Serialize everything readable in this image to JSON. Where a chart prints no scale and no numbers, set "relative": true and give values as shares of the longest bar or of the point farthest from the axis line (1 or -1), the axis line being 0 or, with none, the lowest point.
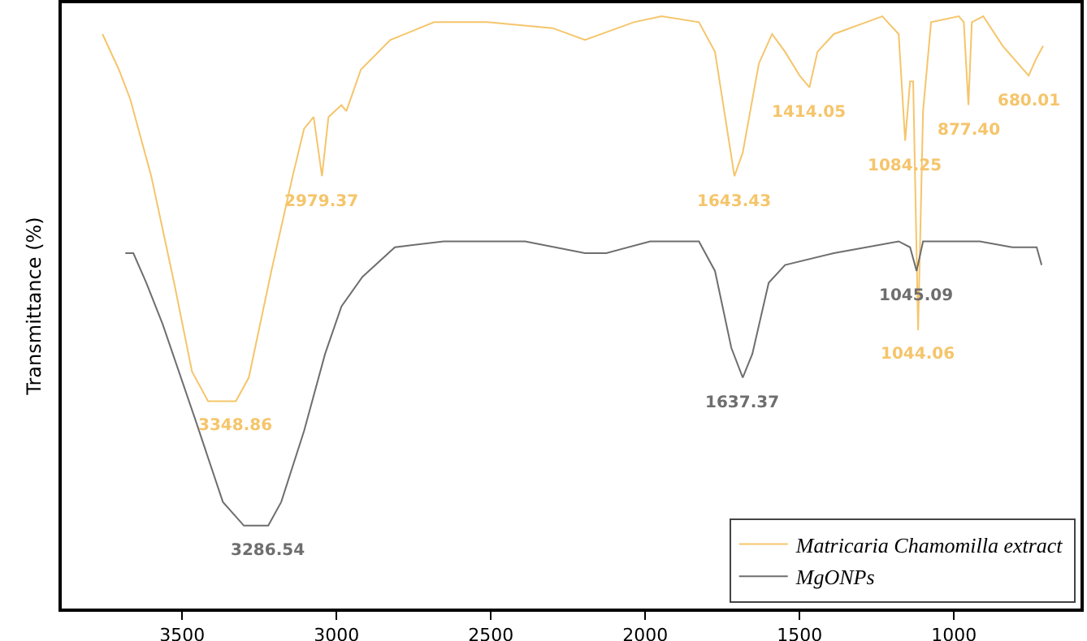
{
  "chart_data": {
    "type": "line",
    "relative": true,
    "ylabel": "Transmittance (%)",
    "xlim": [
      3890,
      590
    ],
    "xticks": [
      3500,
      3000,
      2500,
      2000,
      1500,
      1000
    ],
    "grid": false,
    "legend": "bottom right",
    "marker": "none",
    "line_style": "solid",
    "series": [
      {
        "name": "Matricaria Chamomilla extract",
        "color": "#f5c56b",
        "x": [
          3758,
          3705,
          3668,
          3600,
          3526,
          3468,
          3416,
          3326,
          3284,
          3211,
          3142,
          3105,
          3074,
          3047,
          3026,
          2984,
          2968,
          2921,
          2826,
          2684,
          2511,
          2300,
          2195,
          2037,
          1947,
          1826,
          1774,
          1711,
          1684,
          1632,
          1589,
          1547,
          1500,
          1468,
          1442,
          1389,
          1284,
          1232,
          1179,
          1158,
          1142,
          1132,
          1116,
          1100,
          1074,
          984,
          968,
          953,
          942,
          905,
          842,
          758,
          732,
          711
        ],
        "values": [
          0.97,
          0.91,
          0.86,
          0.73,
          0.55,
          0.4,
          0.35,
          0.35,
          0.39,
          0.57,
          0.73,
          0.81,
          0.83,
          0.73,
          0.83,
          0.85,
          0.84,
          0.91,
          0.96,
          0.99,
          0.99,
          0.98,
          0.96,
          0.99,
          1.0,
          0.99,
          0.94,
          0.73,
          0.77,
          0.92,
          0.97,
          0.94,
          0.9,
          0.88,
          0.94,
          0.97,
          0.99,
          1.0,
          0.97,
          0.79,
          0.89,
          0.89,
          0.47,
          0.84,
          0.99,
          1.0,
          0.99,
          0.85,
          0.99,
          1.0,
          0.95,
          0.9,
          0.93,
          0.95
        ]
      },
      {
        "name": "MgONPs",
        "color": "#6e6e6e",
        "x": [
          3684,
          3658,
          3616,
          3563,
          3458,
          3368,
          3300,
          3221,
          3179,
          3105,
          3037,
          2984,
          2916,
          2811,
          2653,
          2389,
          2195,
          2126,
          1984,
          1826,
          1774,
          1721,
          1684,
          1653,
          1600,
          1547,
          1389,
          1179,
          1142,
          1121,
          1100,
          916,
          811,
          732,
          716
        ],
        "values": [
          0.6,
          0.6,
          0.55,
          0.48,
          0.32,
          0.18,
          0.14,
          0.14,
          0.18,
          0.3,
          0.43,
          0.51,
          0.56,
          0.61,
          0.62,
          0.62,
          0.6,
          0.6,
          0.62,
          0.62,
          0.57,
          0.44,
          0.39,
          0.43,
          0.55,
          0.58,
          0.6,
          0.62,
          0.61,
          0.57,
          0.62,
          0.62,
          0.61,
          0.61,
          0.58
        ]
      }
    ],
    "annotations": [
      {
        "text": "2979.37",
        "x": 3047,
        "y": 0.73
      },
      {
        "text": "3348.86",
        "x": 3326,
        "y": 0.35
      },
      {
        "text": "3286.54",
        "x": 3221,
        "y": 0.14
      },
      {
        "text": "1643.43",
        "x": 1711,
        "y": 0.73
      },
      {
        "text": "1414.05",
        "x": 1468,
        "y": 0.88
      },
      {
        "text": "1084.25",
        "x": 1158,
        "y": 0.79
      },
      {
        "text": "877.40",
        "x": 953,
        "y": 0.85
      },
      {
        "text": "680.01",
        "x": 758,
        "y": 0.9
      },
      {
        "text": "1045.09",
        "x": 1121,
        "y": 0.57
      },
      {
        "text": "1044.06",
        "x": 1116,
        "y": 0.47
      },
      {
        "text": "1637.37",
        "x": 1684,
        "y": 0.39
      }
    ]
  }
}
